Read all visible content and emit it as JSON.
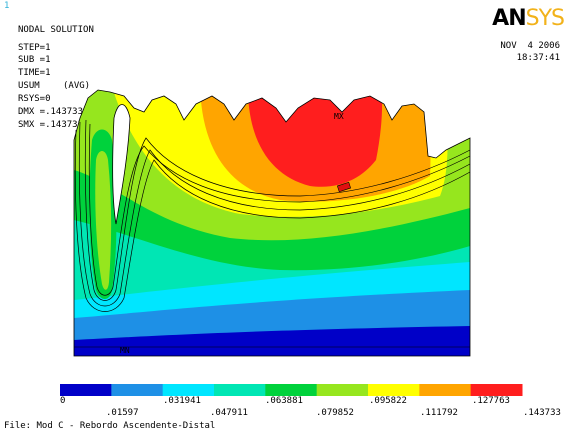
{
  "window_number": "1",
  "header": {
    "title": "NODAL SOLUTION",
    "step": "STEP=1",
    "sub": "SUB =1",
    "time": "TIME=1",
    "usum": "USUM",
    "avg": "(AVG)",
    "rsys": "RSYS=0",
    "dmx": "DMX =.143733",
    "smx": "SMX =.143733"
  },
  "date": "NOV  4 2006",
  "clock": "18:37:41",
  "logo": {
    "part1": "AN",
    "part2": "SYS"
  },
  "markers": {
    "max": "MX",
    "min": "MN"
  },
  "legend": {
    "colors": [
      "#0000c8",
      "#1e90e6",
      "#00e6ff",
      "#00e6b4",
      "#00d23c",
      "#96e61e",
      "#ffff00",
      "#ffa500",
      "#ff1e1e"
    ],
    "upper_labels": [
      "0",
      ".031941",
      ".063881",
      ".095822",
      ".127763"
    ],
    "lower_labels": [
      ".01597",
      ".047911",
      ".079852",
      ".111792",
      ".143733"
    ]
  },
  "file_label": "File: Mod C - Rebordo Ascendente-Distal"
}
